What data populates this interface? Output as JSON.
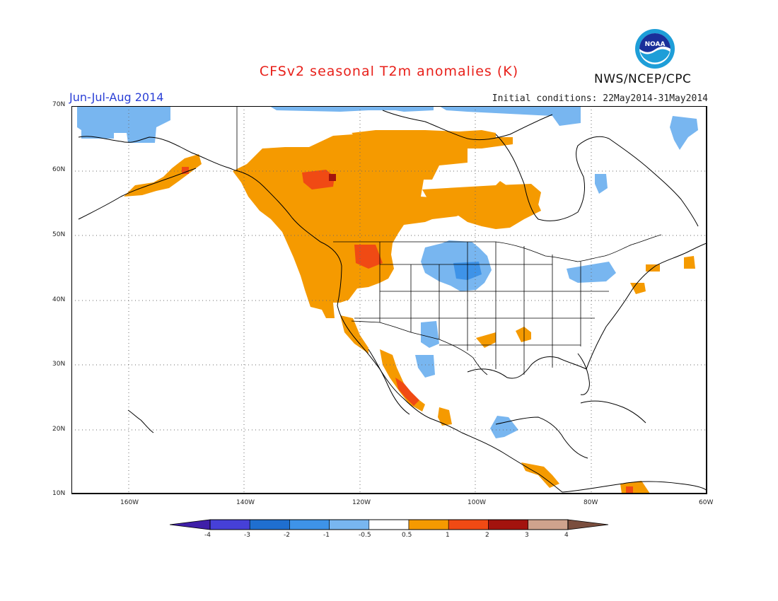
{
  "header": {
    "title": "CFSv2 seasonal T2m anomalies (K)",
    "season": "Jun-Jul-Aug 2014",
    "initial_conditions": "Initial conditions: 22May2014-31May2014",
    "agency": "NWS/NCEP/CPC",
    "logo_text": "NOAA"
  },
  "map": {
    "region": "North America",
    "projection": "lat-lon",
    "lon_range": [
      -171,
      -60
    ],
    "lat_range": [
      10,
      70
    ],
    "lat_ticks": [
      "10N",
      "20N",
      "30N",
      "40N",
      "50N",
      "60N",
      "70N"
    ],
    "lon_ticks": [
      "160W",
      "140W",
      "120W",
      "100W",
      "80W",
      "60W"
    ],
    "grid": "dotted",
    "anomaly_regions": [
      {
        "name": "western canada warm",
        "level": "0.5 to 1",
        "color": "#f59a00"
      },
      {
        "name": "pacific northwest warm",
        "level": "0.5 to 1",
        "color": "#f59a00"
      },
      {
        "name": "northern plains cool",
        "level": "-1 to -0.5",
        "color": "#78b6f0"
      },
      {
        "name": "northern alaska cool",
        "level": "-1 to -0.5",
        "color": "#78b6f0"
      },
      {
        "name": "baja california warm",
        "level": "1 to 2",
        "color": "#f04a14"
      }
    ]
  },
  "colorbar": {
    "labels": [
      "-4",
      "-3",
      "-2",
      "-1",
      "-0.5",
      "0.5",
      "1",
      "2",
      "3",
      "4"
    ],
    "colors": [
      "#3f1fa8",
      "#4640d8",
      "#1f6fd0",
      "#3e93e8",
      "#78b6f0",
      "#ffffff",
      "#f59a00",
      "#f04a14",
      "#a3130e",
      "#cfa38d",
      "#7a4e3e"
    ]
  }
}
